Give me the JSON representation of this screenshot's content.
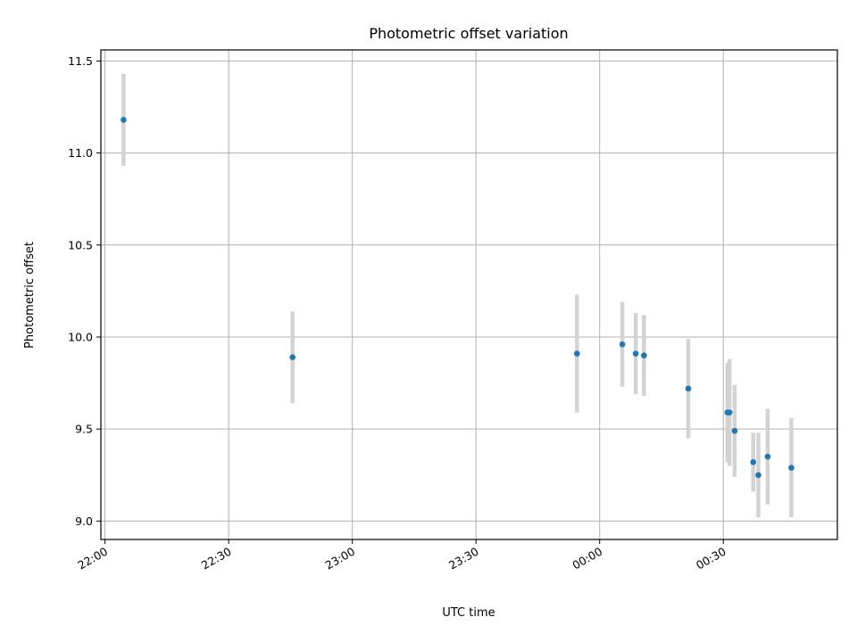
{
  "chart_data": {
    "type": "scatter",
    "title": "Photometric offset variation",
    "xlabel": "UTC time",
    "ylabel": "Photometric offset",
    "x_ticks": [
      "22:00",
      "22:30",
      "23:00",
      "23:30",
      "00:00",
      "00:30"
    ],
    "y_ticks": [
      "9.0",
      "9.5",
      "10.0",
      "10.5",
      "11.0",
      "11.5"
    ],
    "ylim": [
      8.9,
      11.56
    ],
    "xlim": [
      "21:59:00",
      "00:57:40"
    ],
    "grid": true,
    "colors": {
      "point": "#1f77b4",
      "errorbar": "#d3d3d3",
      "grid": "#b0b0b0"
    },
    "series": [
      {
        "points": [
          {
            "x": "22:04:30",
            "y": 11.18,
            "err": 0.25
          },
          {
            "x": "22:45:30",
            "y": 9.89,
            "err": 0.25
          },
          {
            "x": "23:54:30",
            "y": 9.91,
            "err": 0.32
          },
          {
            "x": "00:05:30",
            "y": 9.96,
            "err": 0.23
          },
          {
            "x": "00:08:45",
            "y": 9.91,
            "err": 0.22
          },
          {
            "x": "00:10:45",
            "y": 9.9,
            "err": 0.22
          },
          {
            "x": "00:21:30",
            "y": 9.72,
            "err": 0.27
          },
          {
            "x": "00:31:00",
            "y": 9.59,
            "err": 0.27
          },
          {
            "x": "00:31:30",
            "y": 9.59,
            "err": 0.29
          },
          {
            "x": "00:32:45",
            "y": 9.49,
            "err": 0.25
          },
          {
            "x": "00:37:15",
            "y": 9.32,
            "err": 0.16
          },
          {
            "x": "00:38:30",
            "y": 9.25,
            "err": 0.23
          },
          {
            "x": "00:40:45",
            "y": 9.35,
            "err": 0.26
          },
          {
            "x": "00:46:30",
            "y": 9.29,
            "err": 0.27
          }
        ]
      }
    ]
  }
}
